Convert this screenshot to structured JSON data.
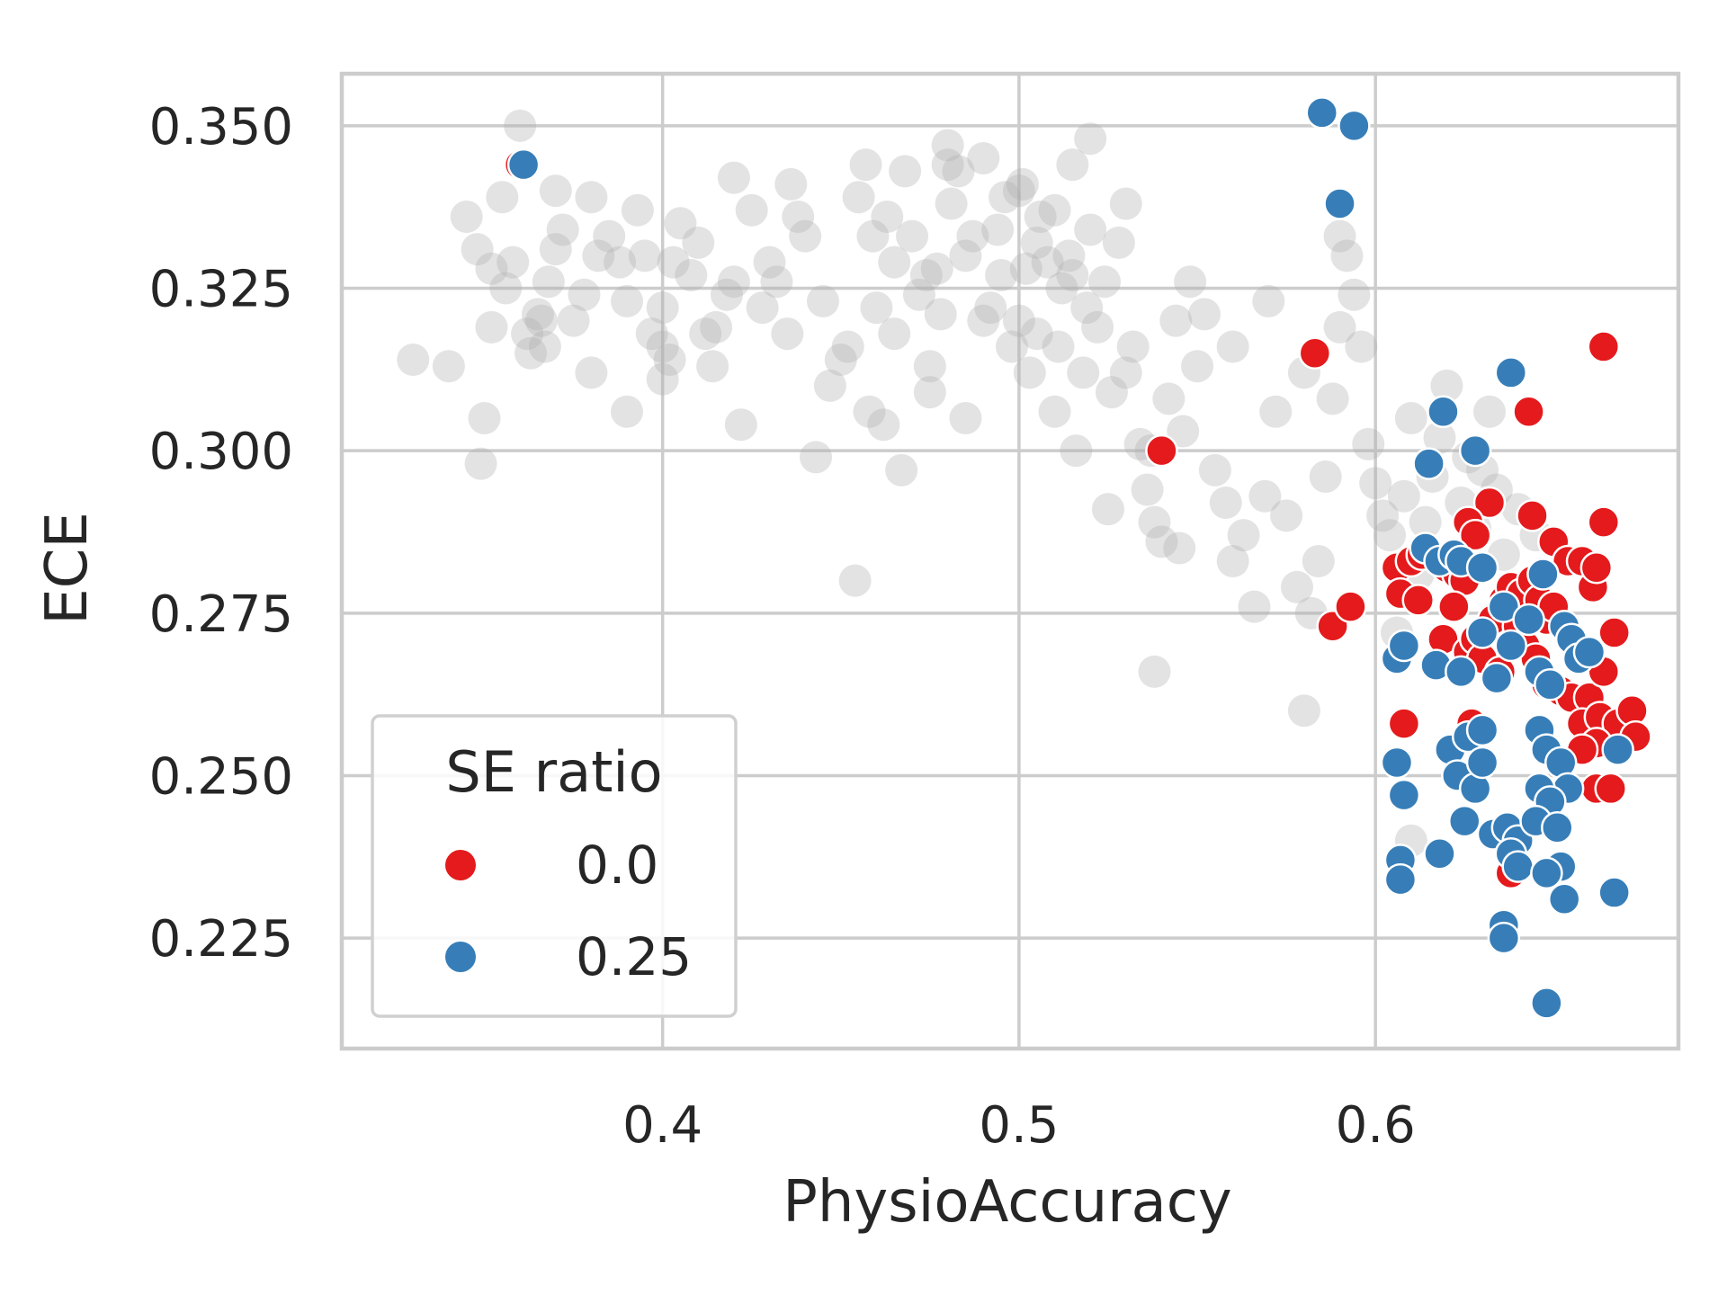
{
  "chart_data": {
    "type": "scatter",
    "xlabel": "PhysioAccuracy",
    "ylabel": "ECE",
    "xlim": [
      0.31,
      0.685
    ],
    "ylim": [
      0.208,
      0.358
    ],
    "xticks": [
      0.4,
      0.5,
      0.6
    ],
    "xtick_labels": [
      "0.4",
      "0.5",
      "0.6"
    ],
    "yticks": [
      0.225,
      0.25,
      0.275,
      0.3,
      0.325,
      0.35
    ],
    "ytick_labels": [
      "0.225",
      "0.250",
      "0.275",
      "0.300",
      "0.325",
      "0.350"
    ],
    "grid": true,
    "legend": {
      "title": "SE ratio",
      "placement": "lower-left",
      "entries": [
        {
          "label": "0.0",
          "color": "#e41a1c"
        },
        {
          "label": "0.25",
          "color": "#377eb8"
        }
      ]
    },
    "background_points": {
      "color": "#b0b0b0",
      "opacity": 0.35,
      "points": [
        [
          0.33,
          0.314
        ],
        [
          0.34,
          0.313
        ],
        [
          0.345,
          0.336
        ],
        [
          0.348,
          0.331
        ],
        [
          0.352,
          0.328
        ],
        [
          0.35,
          0.305
        ],
        [
          0.349,
          0.298
        ],
        [
          0.352,
          0.319
        ],
        [
          0.356,
          0.325
        ],
        [
          0.358,
          0.329
        ],
        [
          0.36,
          0.35
        ],
        [
          0.362,
          0.318
        ],
        [
          0.363,
          0.315
        ],
        [
          0.365,
          0.321
        ],
        [
          0.366,
          0.32
        ],
        [
          0.367,
          0.316
        ],
        [
          0.368,
          0.326
        ],
        [
          0.37,
          0.34
        ],
        [
          0.372,
          0.334
        ],
        [
          0.375,
          0.32
        ],
        [
          0.378,
          0.324
        ],
        [
          0.38,
          0.339
        ],
        [
          0.382,
          0.33
        ],
        [
          0.385,
          0.333
        ],
        [
          0.388,
          0.329
        ],
        [
          0.39,
          0.323
        ],
        [
          0.393,
          0.337
        ],
        [
          0.395,
          0.33
        ],
        [
          0.397,
          0.318
        ],
        [
          0.4,
          0.316
        ],
        [
          0.402,
          0.314
        ],
        [
          0.4,
          0.311
        ],
        [
          0.403,
          0.329
        ],
        [
          0.405,
          0.335
        ],
        [
          0.408,
          0.327
        ],
        [
          0.41,
          0.332
        ],
        [
          0.412,
          0.318
        ],
        [
          0.414,
          0.313
        ],
        [
          0.415,
          0.319
        ],
        [
          0.418,
          0.324
        ],
        [
          0.42,
          0.326
        ],
        [
          0.42,
          0.342
        ],
        [
          0.422,
          0.304
        ],
        [
          0.425,
          0.337
        ],
        [
          0.428,
          0.322
        ],
        [
          0.43,
          0.329
        ],
        [
          0.432,
          0.326
        ],
        [
          0.435,
          0.318
        ],
        [
          0.436,
          0.341
        ],
        [
          0.438,
          0.336
        ],
        [
          0.44,
          0.333
        ],
        [
          0.443,
          0.299
        ],
        [
          0.445,
          0.323
        ],
        [
          0.447,
          0.31
        ],
        [
          0.45,
          0.314
        ],
        [
          0.452,
          0.316
        ],
        [
          0.455,
          0.339
        ],
        [
          0.457,
          0.344
        ],
        [
          0.459,
          0.333
        ],
        [
          0.46,
          0.322
        ],
        [
          0.462,
          0.304
        ],
        [
          0.463,
          0.336
        ],
        [
          0.465,
          0.329
        ],
        [
          0.467,
          0.297
        ],
        [
          0.468,
          0.343
        ],
        [
          0.47,
          0.333
        ],
        [
          0.472,
          0.324
        ],
        [
          0.474,
          0.327
        ],
        [
          0.475,
          0.313
        ],
        [
          0.477,
          0.328
        ],
        [
          0.478,
          0.321
        ],
        [
          0.48,
          0.344
        ],
        [
          0.481,
          0.338
        ],
        [
          0.483,
          0.343
        ],
        [
          0.485,
          0.33
        ],
        [
          0.487,
          0.333
        ],
        [
          0.49,
          0.345
        ],
        [
          0.492,
          0.322
        ],
        [
          0.494,
          0.334
        ],
        [
          0.496,
          0.339
        ],
        [
          0.498,
          0.316
        ],
        [
          0.5,
          0.32
        ],
        [
          0.501,
          0.341
        ],
        [
          0.502,
          0.328
        ],
        [
          0.503,
          0.312
        ],
        [
          0.505,
          0.332
        ],
        [
          0.506,
          0.336
        ],
        [
          0.508,
          0.329
        ],
        [
          0.51,
          0.337
        ],
        [
          0.511,
          0.316
        ],
        [
          0.512,
          0.325
        ],
        [
          0.514,
          0.33
        ],
        [
          0.515,
          0.327
        ],
        [
          0.516,
          0.3
        ],
        [
          0.518,
          0.312
        ],
        [
          0.519,
          0.322
        ],
        [
          0.52,
          0.334
        ],
        [
          0.522,
          0.319
        ],
        [
          0.524,
          0.326
        ],
        [
          0.526,
          0.309
        ],
        [
          0.528,
          0.332
        ],
        [
          0.53,
          0.338
        ],
        [
          0.532,
          0.316
        ],
        [
          0.534,
          0.301
        ],
        [
          0.536,
          0.294
        ],
        [
          0.538,
          0.289
        ],
        [
          0.54,
          0.286
        ],
        [
          0.542,
          0.308
        ],
        [
          0.544,
          0.32
        ],
        [
          0.546,
          0.303
        ],
        [
          0.548,
          0.326
        ],
        [
          0.55,
          0.313
        ],
        [
          0.552,
          0.321
        ],
        [
          0.555,
          0.297
        ],
        [
          0.558,
          0.292
        ],
        [
          0.56,
          0.283
        ],
        [
          0.563,
          0.287
        ],
        [
          0.566,
          0.276
        ],
        [
          0.569,
          0.293
        ],
        [
          0.572,
          0.306
        ],
        [
          0.575,
          0.29
        ],
        [
          0.578,
          0.279
        ],
        [
          0.58,
          0.26
        ],
        [
          0.582,
          0.275
        ],
        [
          0.584,
          0.283
        ],
        [
          0.586,
          0.296
        ],
        [
          0.588,
          0.308
        ],
        [
          0.59,
          0.333
        ],
        [
          0.592,
          0.33
        ],
        [
          0.594,
          0.324
        ],
        [
          0.596,
          0.316
        ],
        [
          0.598,
          0.301
        ],
        [
          0.6,
          0.295
        ],
        [
          0.602,
          0.29
        ],
        [
          0.604,
          0.287
        ],
        [
          0.606,
          0.272
        ],
        [
          0.608,
          0.293
        ],
        [
          0.61,
          0.305
        ],
        [
          0.612,
          0.281
        ],
        [
          0.614,
          0.289
        ],
        [
          0.616,
          0.296
        ],
        [
          0.618,
          0.302
        ],
        [
          0.62,
          0.31
        ],
        [
          0.622,
          0.283
        ],
        [
          0.624,
          0.292
        ],
        [
          0.626,
          0.299
        ],
        [
          0.628,
          0.288
        ],
        [
          0.63,
          0.297
        ],
        [
          0.632,
          0.306
        ],
        [
          0.634,
          0.294
        ],
        [
          0.636,
          0.284
        ],
        [
          0.64,
          0.291
        ],
        [
          0.645,
          0.287
        ],
        [
          0.56,
          0.316
        ],
        [
          0.57,
          0.323
        ],
        [
          0.58,
          0.312
        ],
        [
          0.59,
          0.319
        ],
        [
          0.5,
          0.34
        ],
        [
          0.515,
          0.344
        ],
        [
          0.52,
          0.348
        ],
        [
          0.48,
          0.347
        ],
        [
          0.454,
          0.28
        ],
        [
          0.538,
          0.266
        ],
        [
          0.537,
          0.3
        ],
        [
          0.545,
          0.285
        ],
        [
          0.51,
          0.306
        ],
        [
          0.525,
          0.291
        ],
        [
          0.53,
          0.312
        ],
        [
          0.49,
          0.32
        ],
        [
          0.495,
          0.327
        ],
        [
          0.505,
          0.318
        ],
        [
          0.485,
          0.305
        ],
        [
          0.475,
          0.309
        ],
        [
          0.458,
          0.306
        ],
        [
          0.465,
          0.318
        ],
        [
          0.4,
          0.322
        ],
        [
          0.38,
          0.312
        ],
        [
          0.39,
          0.306
        ],
        [
          0.37,
          0.331
        ],
        [
          0.355,
          0.339
        ],
        [
          0.61,
          0.24
        ]
      ]
    },
    "series": [
      {
        "name": "0.0",
        "color": "#e41a1c",
        "points": [
          [
            0.36,
            0.344
          ],
          [
            0.583,
            0.315
          ],
          [
            0.54,
            0.3
          ],
          [
            0.664,
            0.316
          ],
          [
            0.643,
            0.306
          ],
          [
            0.632,
            0.292
          ],
          [
            0.644,
            0.29
          ],
          [
            0.664,
            0.289
          ],
          [
            0.626,
            0.289
          ],
          [
            0.628,
            0.287
          ],
          [
            0.606,
            0.282
          ],
          [
            0.61,
            0.283
          ],
          [
            0.613,
            0.284
          ],
          [
            0.607,
            0.278
          ],
          [
            0.612,
            0.277
          ],
          [
            0.62,
            0.282
          ],
          [
            0.623,
            0.281
          ],
          [
            0.625,
            0.28
          ],
          [
            0.622,
            0.276
          ],
          [
            0.619,
            0.271
          ],
          [
            0.626,
            0.269
          ],
          [
            0.628,
            0.271
          ],
          [
            0.63,
            0.268
          ],
          [
            0.633,
            0.274
          ],
          [
            0.636,
            0.277
          ],
          [
            0.638,
            0.279
          ],
          [
            0.641,
            0.278
          ],
          [
            0.644,
            0.28
          ],
          [
            0.646,
            0.277
          ],
          [
            0.648,
            0.274
          ],
          [
            0.65,
            0.286
          ],
          [
            0.654,
            0.283
          ],
          [
            0.658,
            0.283
          ],
          [
            0.661,
            0.279
          ],
          [
            0.662,
            0.282
          ],
          [
            0.64,
            0.273
          ],
          [
            0.642,
            0.27
          ],
          [
            0.645,
            0.268
          ],
          [
            0.635,
            0.266
          ],
          [
            0.648,
            0.264
          ],
          [
            0.652,
            0.263
          ],
          [
            0.655,
            0.262
          ],
          [
            0.66,
            0.262
          ],
          [
            0.664,
            0.266
          ],
          [
            0.667,
            0.272
          ],
          [
            0.658,
            0.258
          ],
          [
            0.663,
            0.259
          ],
          [
            0.668,
            0.258
          ],
          [
            0.672,
            0.26
          ],
          [
            0.673,
            0.256
          ],
          [
            0.662,
            0.255
          ],
          [
            0.658,
            0.254
          ],
          [
            0.662,
            0.248
          ],
          [
            0.666,
            0.248
          ],
          [
            0.588,
            0.273
          ],
          [
            0.593,
            0.276
          ],
          [
            0.608,
            0.258
          ],
          [
            0.627,
            0.258
          ],
          [
            0.638,
            0.235
          ],
          [
            0.65,
            0.276
          ]
        ]
      },
      {
        "name": "0.25",
        "color": "#377eb8",
        "points": [
          [
            0.361,
            0.344
          ],
          [
            0.585,
            0.352
          ],
          [
            0.594,
            0.35
          ],
          [
            0.59,
            0.338
          ],
          [
            0.638,
            0.312
          ],
          [
            0.619,
            0.306
          ],
          [
            0.628,
            0.3
          ],
          [
            0.615,
            0.298
          ],
          [
            0.614,
            0.285
          ],
          [
            0.618,
            0.283
          ],
          [
            0.622,
            0.284
          ],
          [
            0.624,
            0.283
          ],
          [
            0.63,
            0.282
          ],
          [
            0.647,
            0.281
          ],
          [
            0.606,
            0.268
          ],
          [
            0.608,
            0.27
          ],
          [
            0.617,
            0.267
          ],
          [
            0.624,
            0.266
          ],
          [
            0.63,
            0.272
          ],
          [
            0.634,
            0.265
          ],
          [
            0.636,
            0.276
          ],
          [
            0.638,
            0.27
          ],
          [
            0.643,
            0.274
          ],
          [
            0.646,
            0.266
          ],
          [
            0.649,
            0.264
          ],
          [
            0.653,
            0.273
          ],
          [
            0.655,
            0.271
          ],
          [
            0.657,
            0.268
          ],
          [
            0.66,
            0.269
          ],
          [
            0.621,
            0.254
          ],
          [
            0.626,
            0.256
          ],
          [
            0.63,
            0.257
          ],
          [
            0.606,
            0.252
          ],
          [
            0.608,
            0.247
          ],
          [
            0.623,
            0.25
          ],
          [
            0.628,
            0.248
          ],
          [
            0.63,
            0.252
          ],
          [
            0.646,
            0.257
          ],
          [
            0.648,
            0.254
          ],
          [
            0.652,
            0.252
          ],
          [
            0.654,
            0.248
          ],
          [
            0.646,
            0.248
          ],
          [
            0.649,
            0.246
          ],
          [
            0.625,
            0.243
          ],
          [
            0.633,
            0.241
          ],
          [
            0.637,
            0.242
          ],
          [
            0.64,
            0.24
          ],
          [
            0.645,
            0.243
          ],
          [
            0.651,
            0.242
          ],
          [
            0.607,
            0.237
          ],
          [
            0.607,
            0.234
          ],
          [
            0.618,
            0.238
          ],
          [
            0.638,
            0.238
          ],
          [
            0.64,
            0.236
          ],
          [
            0.652,
            0.236
          ],
          [
            0.648,
            0.235
          ],
          [
            0.653,
            0.231
          ],
          [
            0.667,
            0.232
          ],
          [
            0.636,
            0.227
          ],
          [
            0.636,
            0.225
          ],
          [
            0.648,
            0.215
          ],
          [
            0.668,
            0.254
          ]
        ]
      }
    ]
  }
}
